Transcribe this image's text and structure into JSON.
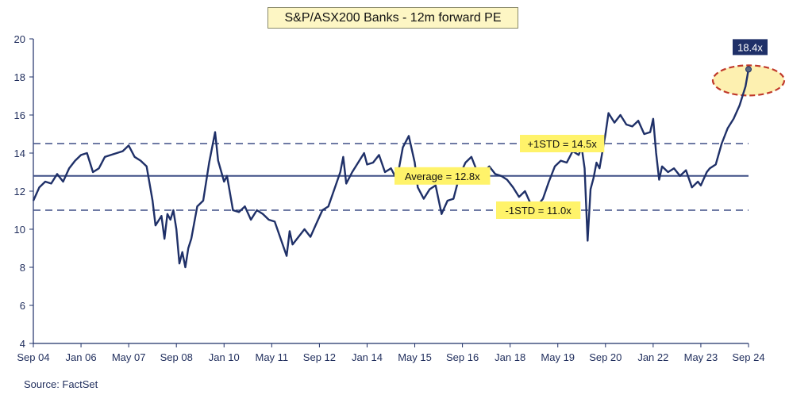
{
  "chart_data": {
    "type": "line",
    "title": "S&P/ASX200 Banks - 12m forward PE",
    "source": "Source: FactSet",
    "ylim": [
      4,
      20
    ],
    "yticks": [
      4,
      6,
      8,
      10,
      12,
      14,
      16,
      18,
      20
    ],
    "xlim": [
      "2004-09",
      "2024-09"
    ],
    "xticks": [
      {
        "label": "Sep 04",
        "date": "2004-09"
      },
      {
        "label": "Jan 06",
        "date": "2006-01"
      },
      {
        "label": "May 07",
        "date": "2007-05"
      },
      {
        "label": "Sep 08",
        "date": "2008-09"
      },
      {
        "label": "Jan 10",
        "date": "2010-01"
      },
      {
        "label": "May 11",
        "date": "2011-05"
      },
      {
        "label": "Sep 12",
        "date": "2012-09"
      },
      {
        "label": "Jan 14",
        "date": "2014-01"
      },
      {
        "label": "May 15",
        "date": "2015-05"
      },
      {
        "label": "Sep 16",
        "date": "2016-09"
      },
      {
        "label": "Jan 18",
        "date": "2018-01"
      },
      {
        "label": "May 19",
        "date": "2019-05"
      },
      {
        "label": "Sep 20",
        "date": "2020-09"
      },
      {
        "label": "Jan 22",
        "date": "2022-01"
      },
      {
        "label": "May 23",
        "date": "2023-05"
      },
      {
        "label": "Sep 24",
        "date": "2024-09"
      }
    ],
    "series": [
      {
        "color": "#1f3068",
        "points": [
          [
            "2004-09",
            11.5
          ],
          [
            "2004-11",
            12.2
          ],
          [
            "2005-01",
            12.5
          ],
          [
            "2005-03",
            12.4
          ],
          [
            "2005-05",
            12.9
          ],
          [
            "2005-07",
            12.5
          ],
          [
            "2005-09",
            13.2
          ],
          [
            "2005-11",
            13.6
          ],
          [
            "2006-01",
            13.9
          ],
          [
            "2006-03",
            14.0
          ],
          [
            "2006-05",
            13.0
          ],
          [
            "2006-07",
            13.2
          ],
          [
            "2006-09",
            13.8
          ],
          [
            "2006-11",
            13.9
          ],
          [
            "2007-01",
            14.0
          ],
          [
            "2007-03",
            14.1
          ],
          [
            "2007-05",
            14.4
          ],
          [
            "2007-07",
            13.8
          ],
          [
            "2007-09",
            13.6
          ],
          [
            "2007-11",
            13.3
          ],
          [
            "2008-01",
            11.5
          ],
          [
            "2008-02",
            10.2
          ],
          [
            "2008-04",
            10.7
          ],
          [
            "2008-05",
            9.5
          ],
          [
            "2008-06",
            10.8
          ],
          [
            "2008-07",
            10.5
          ],
          [
            "2008-08",
            11.0
          ],
          [
            "2008-09",
            10.0
          ],
          [
            "2008-10",
            8.2
          ],
          [
            "2008-11",
            8.8
          ],
          [
            "2008-12",
            8.0
          ],
          [
            "2009-01",
            9.0
          ],
          [
            "2009-02",
            9.5
          ],
          [
            "2009-04",
            11.2
          ],
          [
            "2009-06",
            11.5
          ],
          [
            "2009-08",
            13.5
          ],
          [
            "2009-10",
            15.1
          ],
          [
            "2009-11",
            13.6
          ],
          [
            "2010-01",
            12.5
          ],
          [
            "2010-02",
            12.8
          ],
          [
            "2010-04",
            11.0
          ],
          [
            "2010-06",
            10.9
          ],
          [
            "2010-08",
            11.2
          ],
          [
            "2010-10",
            10.5
          ],
          [
            "2010-12",
            11.0
          ],
          [
            "2011-02",
            10.8
          ],
          [
            "2011-04",
            10.5
          ],
          [
            "2011-06",
            10.4
          ],
          [
            "2011-08",
            9.5
          ],
          [
            "2011-10",
            8.6
          ],
          [
            "2011-11",
            9.9
          ],
          [
            "2011-12",
            9.2
          ],
          [
            "2012-02",
            9.6
          ],
          [
            "2012-04",
            10.0
          ],
          [
            "2012-06",
            9.6
          ],
          [
            "2012-08",
            10.3
          ],
          [
            "2012-10",
            11.0
          ],
          [
            "2012-12",
            11.2
          ],
          [
            "2013-02",
            12.1
          ],
          [
            "2013-04",
            13.0
          ],
          [
            "2013-05",
            13.8
          ],
          [
            "2013-06",
            12.4
          ],
          [
            "2013-08",
            13.0
          ],
          [
            "2013-10",
            13.5
          ],
          [
            "2013-12",
            14.0
          ],
          [
            "2014-01",
            13.4
          ],
          [
            "2014-03",
            13.5
          ],
          [
            "2014-05",
            13.9
          ],
          [
            "2014-07",
            13.0
          ],
          [
            "2014-09",
            13.2
          ],
          [
            "2014-11",
            12.6
          ],
          [
            "2015-01",
            14.3
          ],
          [
            "2015-03",
            14.9
          ],
          [
            "2015-05",
            13.5
          ],
          [
            "2015-06",
            12.2
          ],
          [
            "2015-08",
            11.6
          ],
          [
            "2015-10",
            12.1
          ],
          [
            "2015-12",
            12.3
          ],
          [
            "2016-02",
            10.8
          ],
          [
            "2016-04",
            11.5
          ],
          [
            "2016-06",
            11.6
          ],
          [
            "2016-08",
            12.8
          ],
          [
            "2016-10",
            13.5
          ],
          [
            "2016-12",
            13.8
          ],
          [
            "2017-02",
            13.0
          ],
          [
            "2017-04",
            13.0
          ],
          [
            "2017-06",
            13.3
          ],
          [
            "2017-08",
            12.9
          ],
          [
            "2017-10",
            12.8
          ],
          [
            "2017-12",
            12.6
          ],
          [
            "2018-02",
            12.2
          ],
          [
            "2018-04",
            11.7
          ],
          [
            "2018-06",
            12.0
          ],
          [
            "2018-08",
            11.3
          ],
          [
            "2018-10",
            11.2
          ],
          [
            "2018-12",
            11.6
          ],
          [
            "2019-02",
            12.5
          ],
          [
            "2019-04",
            13.3
          ],
          [
            "2019-06",
            13.6
          ],
          [
            "2019-08",
            13.5
          ],
          [
            "2019-10",
            14.1
          ],
          [
            "2019-12",
            13.9
          ],
          [
            "2020-01",
            14.3
          ],
          [
            "2020-02",
            13.2
          ],
          [
            "2020-03",
            9.4
          ],
          [
            "2020-04",
            12.1
          ],
          [
            "2020-05",
            12.7
          ],
          [
            "2020-06",
            13.5
          ],
          [
            "2020-07",
            13.2
          ],
          [
            "2020-09",
            15.0
          ],
          [
            "2020-10",
            16.1
          ],
          [
            "2020-12",
            15.6
          ],
          [
            "2021-02",
            16.0
          ],
          [
            "2021-04",
            15.5
          ],
          [
            "2021-06",
            15.4
          ],
          [
            "2021-08",
            15.7
          ],
          [
            "2021-10",
            15.0
          ],
          [
            "2021-12",
            15.1
          ],
          [
            "2022-01",
            15.8
          ],
          [
            "2022-02",
            14.0
          ],
          [
            "2022-03",
            12.6
          ],
          [
            "2022-04",
            13.3
          ],
          [
            "2022-06",
            13.0
          ],
          [
            "2022-08",
            13.2
          ],
          [
            "2022-10",
            12.8
          ],
          [
            "2022-12",
            13.1
          ],
          [
            "2023-02",
            12.2
          ],
          [
            "2023-04",
            12.5
          ],
          [
            "2023-05",
            12.3
          ],
          [
            "2023-07",
            13.0
          ],
          [
            "2023-08",
            13.2
          ],
          [
            "2023-10",
            13.4
          ],
          [
            "2023-12",
            14.5
          ],
          [
            "2024-02",
            15.3
          ],
          [
            "2024-04",
            15.8
          ],
          [
            "2024-06",
            16.5
          ],
          [
            "2024-08",
            17.5
          ],
          [
            "2024-09",
            18.4
          ]
        ]
      }
    ],
    "reference_lines": [
      {
        "label": "+1STD = 14.5x",
        "value": 14.5,
        "style": "dashed"
      },
      {
        "label": "Average = 12.8x",
        "value": 12.8,
        "style": "solid"
      },
      {
        "label": "-1STD = 11.0x",
        "value": 11.0,
        "style": "dashed"
      }
    ],
    "last_value_label": "18.4x",
    "colors": {
      "line": "#1f3068",
      "label_fill": "#fff36a",
      "last_label_fill": "#1f3068",
      "highlight_fill": "#fdf0b0",
      "highlight_stroke": "#c0392b"
    }
  }
}
